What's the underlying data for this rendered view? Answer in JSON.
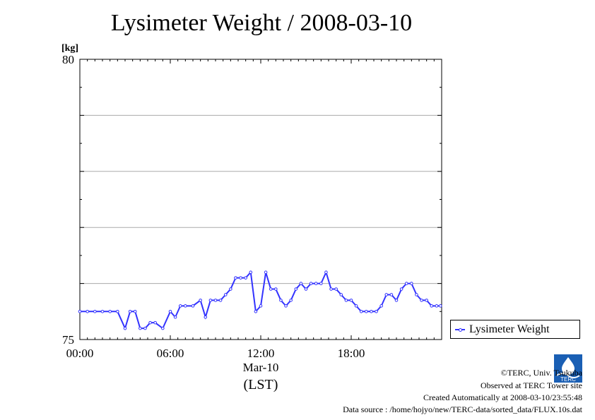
{
  "header": {
    "title": "Lysimeter Weight / 2008-03-10"
  },
  "legend": {
    "label": "Lysimeter Weight"
  },
  "footer": {
    "copyright": "©TERC, Univ. Tsukuba",
    "observed": "Observed at TERC Tower site",
    "created": "Created Automatically at 2008-03-10/23:55:48",
    "source": "Data source : /home/hojyo/new/TERC-data/sorted_data/FLUX.10s.dat"
  },
  "logo": {
    "text": "TERC"
  },
  "colors": {
    "series": "#3333ff",
    "grid": "#aaaaaa",
    "axis": "#000000"
  },
  "chart_data": {
    "type": "line",
    "title": "Lysimeter Weight / 2008-03-10",
    "ylabel": "[kg]",
    "xlabel": "(LST)",
    "date_label": "Mar-10",
    "ylim": [
      75,
      80
    ],
    "xlim": [
      "00:00",
      "24:00"
    ],
    "y_tick_labels": [
      "75",
      "80"
    ],
    "y_grid": [
      76,
      77,
      78,
      79
    ],
    "x_tick_labels": [
      "00:00",
      "06:00",
      "12:00",
      "18:00"
    ],
    "grid": true,
    "legend_position": "right",
    "series": [
      {
        "name": "Lysimeter Weight",
        "x": [
          "00:00",
          "00:30",
          "01:00",
          "01:30",
          "02:00",
          "02:30",
          "03:00",
          "03:20",
          "03:40",
          "04:00",
          "04:20",
          "04:40",
          "05:00",
          "05:30",
          "06:00",
          "06:20",
          "06:40",
          "07:00",
          "07:30",
          "08:00",
          "08:20",
          "08:40",
          "09:00",
          "09:20",
          "09:40",
          "10:00",
          "10:20",
          "10:40",
          "11:00",
          "11:20",
          "11:40",
          "12:00",
          "12:20",
          "12:40",
          "13:00",
          "13:20",
          "13:40",
          "14:00",
          "14:20",
          "14:40",
          "15:00",
          "15:20",
          "15:40",
          "16:00",
          "16:20",
          "16:40",
          "17:00",
          "17:20",
          "17:40",
          "18:00",
          "18:20",
          "18:40",
          "19:00",
          "19:20",
          "19:40",
          "20:00",
          "20:20",
          "20:40",
          "21:00",
          "21:20",
          "21:40",
          "22:00",
          "22:20",
          "22:40",
          "23:00",
          "23:20",
          "23:40",
          "23:55"
        ],
        "y": [
          75.5,
          75.5,
          75.5,
          75.5,
          75.5,
          75.5,
          75.2,
          75.5,
          75.5,
          75.2,
          75.2,
          75.3,
          75.3,
          75.2,
          75.5,
          75.4,
          75.6,
          75.6,
          75.6,
          75.7,
          75.4,
          75.7,
          75.7,
          75.7,
          75.8,
          75.9,
          76.1,
          76.1,
          76.1,
          76.2,
          75.5,
          75.6,
          76.2,
          75.9,
          75.9,
          75.7,
          75.6,
          75.7,
          75.9,
          76.0,
          75.9,
          76.0,
          76.0,
          76.0,
          76.2,
          75.9,
          75.9,
          75.8,
          75.7,
          75.7,
          75.6,
          75.5,
          75.5,
          75.5,
          75.5,
          75.6,
          75.8,
          75.8,
          75.7,
          75.9,
          76.0,
          76.0,
          75.8,
          75.7,
          75.7,
          75.6,
          75.6,
          75.6
        ]
      }
    ]
  }
}
